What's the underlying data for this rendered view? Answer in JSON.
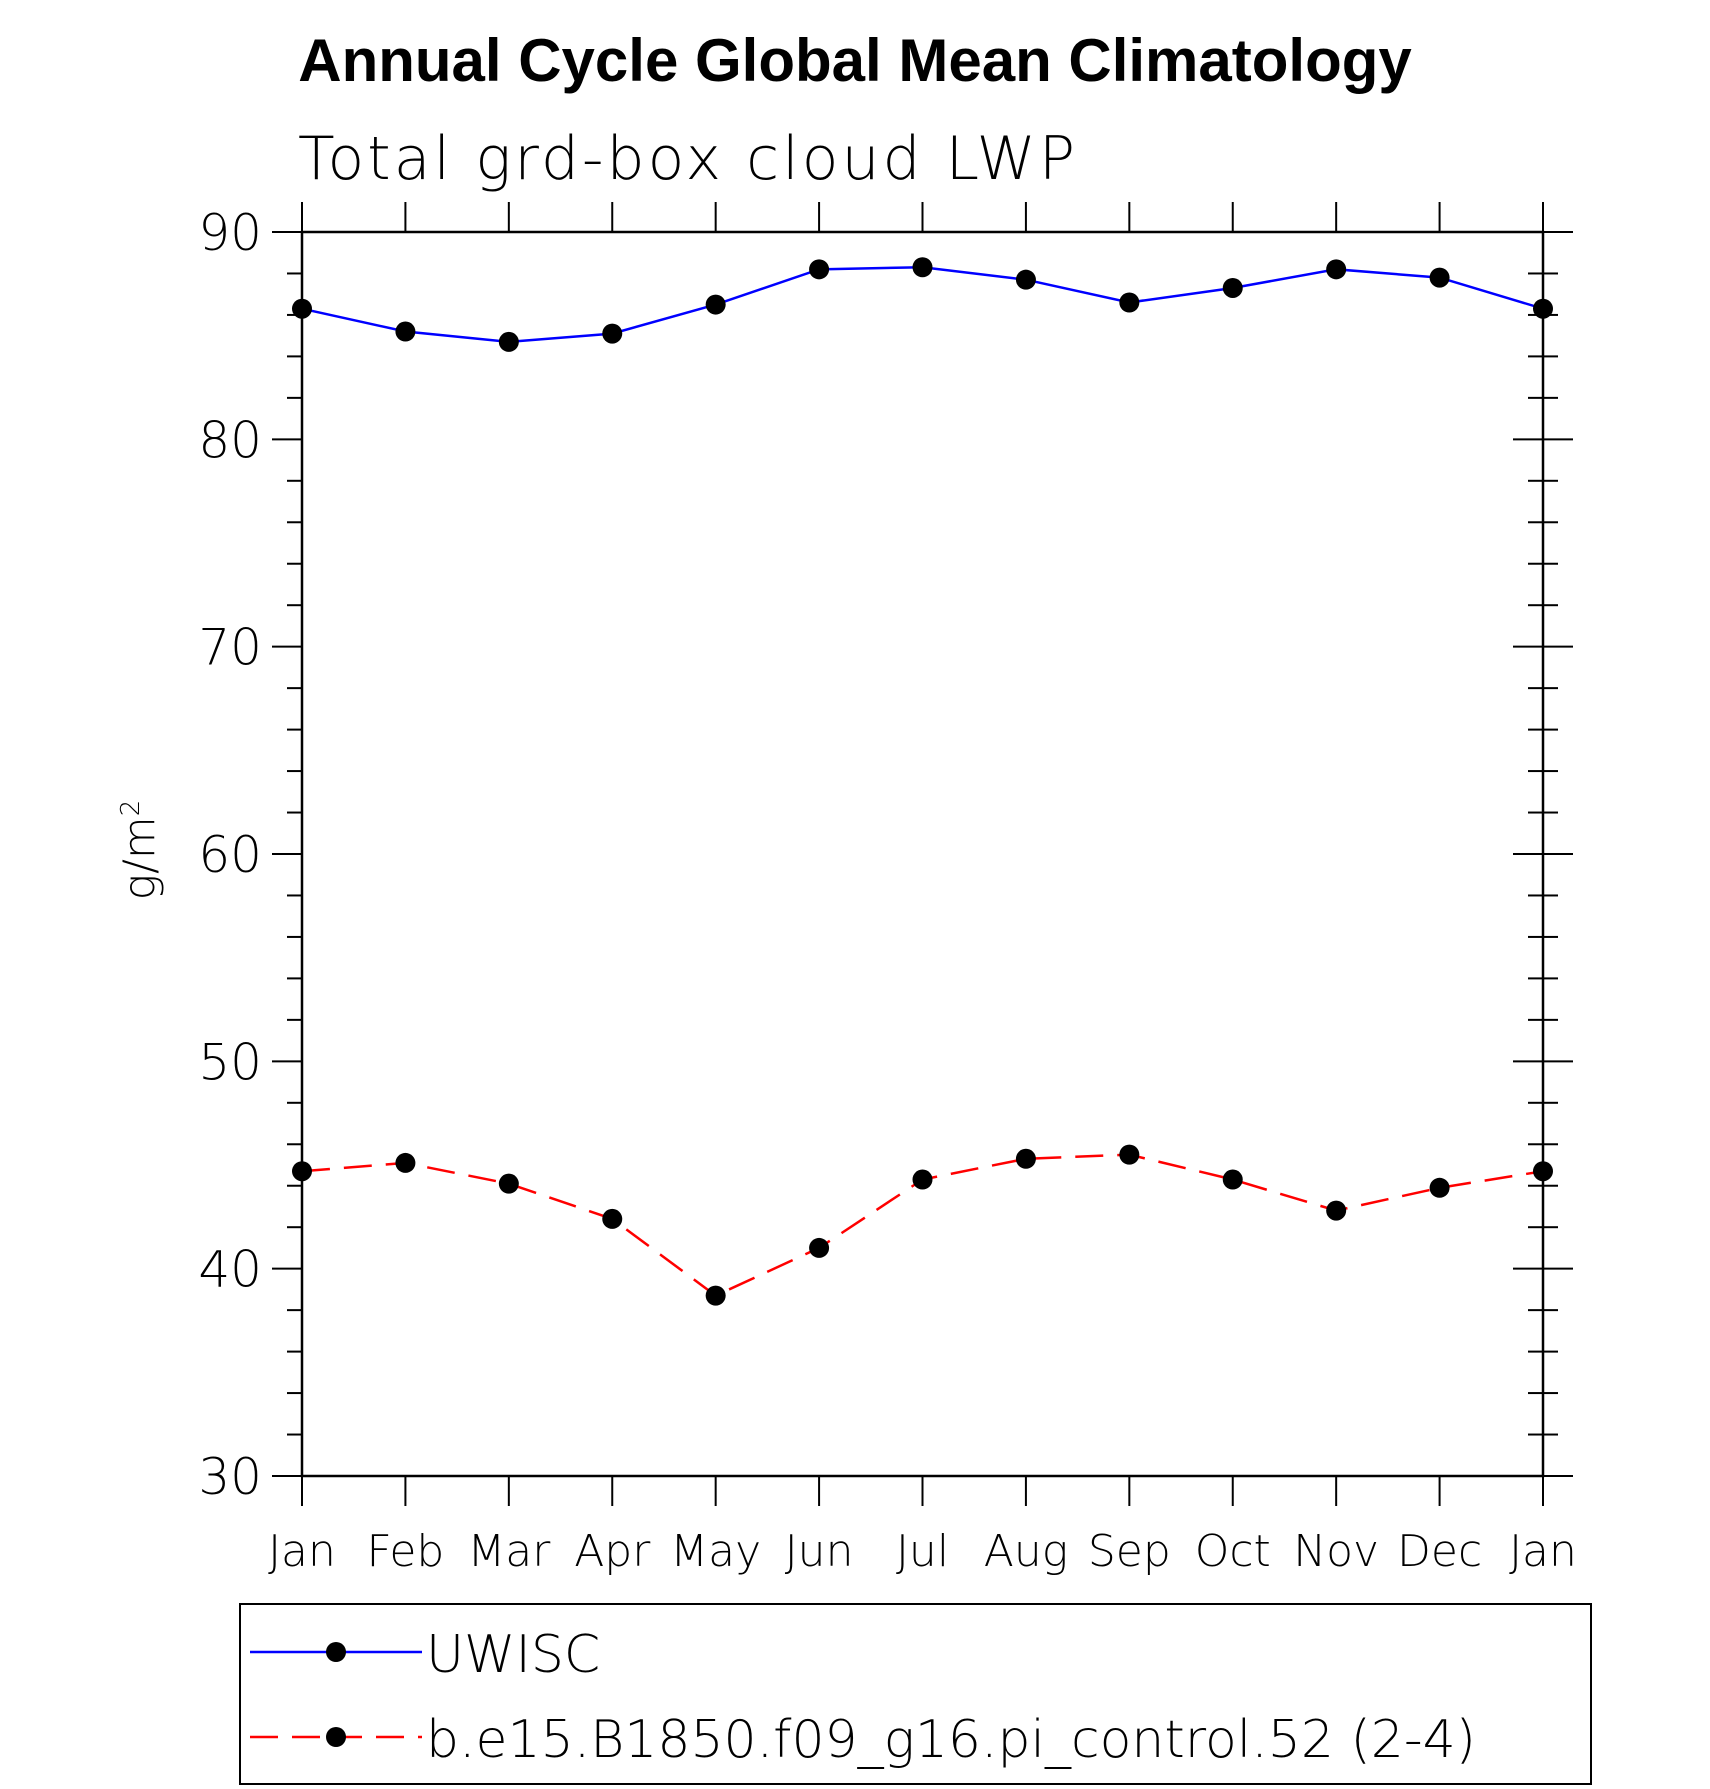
{
  "title": "Annual Cycle Global Mean Climatology",
  "subtitle": "Total grd-box cloud LWP",
  "ylabel_base": "g/m",
  "ylabel_sup": "2",
  "chart_data": {
    "type": "line",
    "categories": [
      "Jan",
      "Feb",
      "Mar",
      "Apr",
      "May",
      "Jun",
      "Jul",
      "Aug",
      "Sep",
      "Oct",
      "Nov",
      "Dec",
      "Jan"
    ],
    "ylim": [
      30,
      90
    ],
    "yticks": [
      30,
      40,
      50,
      60,
      70,
      80,
      90
    ],
    "series": [
      {
        "name": "UWISC",
        "color": "#0000ff",
        "dash": "solid",
        "values": [
          86.3,
          85.2,
          84.7,
          85.1,
          86.5,
          88.2,
          88.3,
          87.7,
          86.6,
          87.3,
          88.2,
          87.8,
          86.3
        ]
      },
      {
        "name": "b.e15.B1850.f09_g16.pi_control.52 (2-4)",
        "color": "#ff0000",
        "dash": "dashed",
        "values": [
          44.7,
          45.1,
          44.1,
          42.4,
          38.7,
          41.0,
          44.3,
          45.3,
          45.5,
          44.3,
          42.8,
          43.9,
          44.7
        ]
      }
    ],
    "marker": "filled-circle",
    "marker_color": "#000000",
    "legend_position": "bottom"
  }
}
